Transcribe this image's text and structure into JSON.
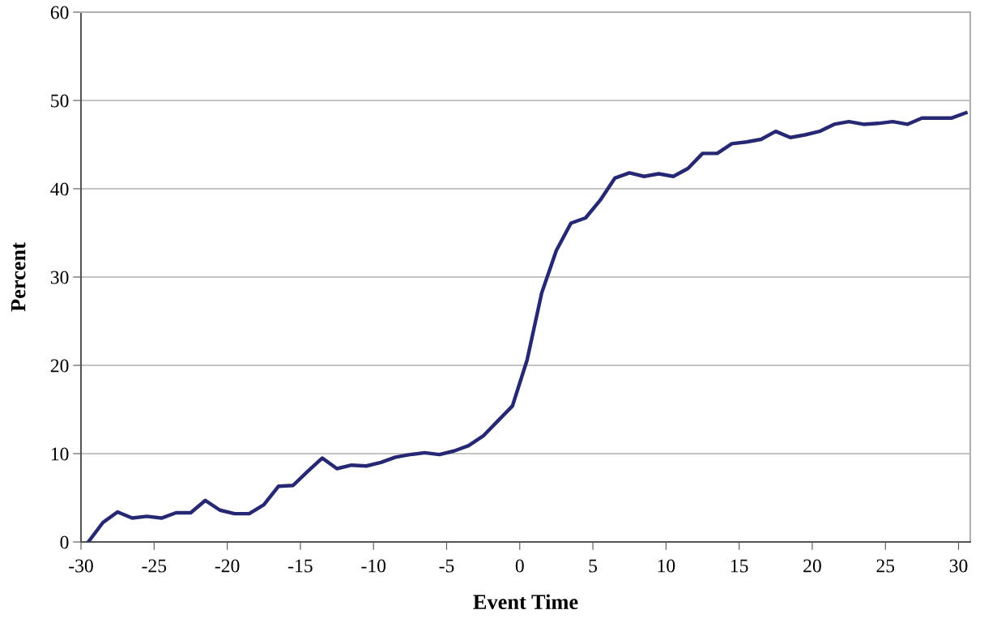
{
  "chart_data": {
    "type": "line",
    "xlabel": "Event Time",
    "ylabel": "Percent",
    "x": [
      -29.5,
      -28.5,
      -27.5,
      -26.5,
      -25.5,
      -24.5,
      -23.5,
      -22.5,
      -21.5,
      -20.5,
      -19.5,
      -18.5,
      -17.5,
      -16.5,
      -15.5,
      -14.5,
      -13.5,
      -12.5,
      -11.5,
      -10.5,
      -9.5,
      -8.5,
      -7.5,
      -6.5,
      -5.5,
      -4.5,
      -3.5,
      -2.5,
      -1.5,
      -0.5,
      0.5,
      1.5,
      2.5,
      3.5,
      4.5,
      5.5,
      6.5,
      7.5,
      8.5,
      9.5,
      10.5,
      11.5,
      12.5,
      13.5,
      14.5,
      15.5,
      16.5,
      17.5,
      18.5,
      19.5,
      20.5,
      21.5,
      22.5,
      23.5,
      24.5,
      25.5,
      26.5,
      27.5,
      28.5,
      29.5,
      30.5
    ],
    "series": [
      {
        "color": "#262873",
        "values": [
          0,
          2.2,
          3.4,
          2.7,
          2.9,
          2.7,
          3.3,
          3.3,
          4.7,
          3.6,
          3.2,
          3.2,
          4.2,
          6.3,
          6.4,
          8.0,
          9.5,
          8.3,
          8.7,
          8.6,
          9.0,
          9.6,
          9.9,
          10.1,
          9.9,
          10.3,
          10.9,
          12.0,
          13.7,
          15.4,
          20.6,
          28.2,
          33.0,
          36.1,
          36.7,
          38.7,
          41.2,
          41.8,
          41.4,
          41.7,
          41.4,
          42.3,
          44.0,
          44.0,
          45.1,
          45.3,
          45.6,
          46.5,
          45.8,
          46.1,
          46.5,
          47.3,
          47.6,
          47.3,
          47.4,
          47.6,
          47.3,
          48.0,
          48.0,
          48.0,
          48.6
        ]
      }
    ],
    "xlim": [
      -30,
      30.8
    ],
    "ylim": [
      0,
      60
    ],
    "xticks": [
      -30,
      -25,
      -20,
      -15,
      -10,
      -5,
      0,
      5,
      10,
      15,
      20,
      25,
      30
    ],
    "yticks": [
      0,
      10,
      20,
      30,
      40,
      50,
      60
    ],
    "grid": "y",
    "marker": "none",
    "line_style": "solid"
  }
}
